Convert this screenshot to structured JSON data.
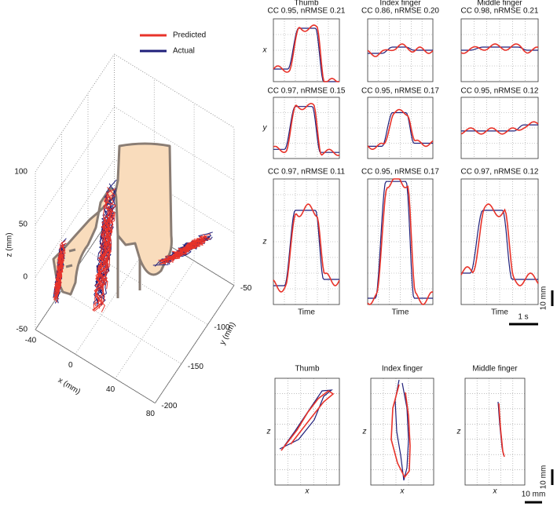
{
  "legend": {
    "predicted": "Predicted",
    "actual": "Actual"
  },
  "plot3d": {
    "x_label": "x (mm)",
    "y_label": "y (mm)",
    "z_label": "z (mm)",
    "xticks": [
      -40,
      0,
      40,
      80
    ],
    "yticks": [
      -50,
      -100,
      -150,
      -200
    ],
    "zticks": [
      -50,
      0,
      50,
      100
    ]
  },
  "time_panels": {
    "columns": [
      "Thumb",
      "Index finger",
      "Middle finger"
    ],
    "row_labels": [
      "x",
      "y",
      "z"
    ],
    "stats": [
      [
        "CC 0.95, nRMSE 0.21",
        "CC 0.86, nRMSE 0.20",
        "CC 0.98, nRMSE 0.21"
      ],
      [
        "CC 0.97, nRMSE 0.15",
        "CC 0.95, nRMSE 0.17",
        "CC 0.95, nRMSE 0.12"
      ],
      [
        "CC 0.97, nRMSE 0.11",
        "CC 0.95, nRMSE 0.17",
        "CC 0.97, nRMSE 0.12"
      ]
    ],
    "x_label": "Time",
    "scale_mm": "10 mm",
    "scale_time": "1 s"
  },
  "trajectory_panels": {
    "columns": [
      "Thumb",
      "Index finger",
      "Middle finger"
    ],
    "x_label": "x",
    "y_label": "z",
    "scale_z": "10 mm",
    "scale_x": "10 mm"
  }
}
